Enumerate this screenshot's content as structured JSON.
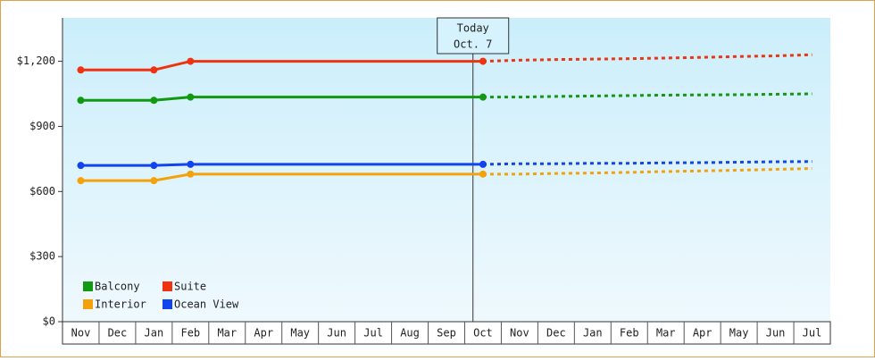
{
  "chart_data": {
    "type": "line",
    "categories": [
      "Nov",
      "Dec",
      "Jan",
      "Feb",
      "Mar",
      "Apr",
      "May",
      "Jun",
      "Jul",
      "Aug",
      "Sep",
      "Oct",
      "Nov",
      "Dec",
      "Jan",
      "Feb",
      "Mar",
      "Apr",
      "May",
      "Jun",
      "Jul"
    ],
    "series": [
      {
        "name": "Balcony",
        "color": "#119911",
        "values": [
          1020,
          1020,
          1020,
          1035,
          1035,
          1035,
          1035,
          1035,
          1035,
          1035,
          1035,
          1035,
          1035,
          1038,
          1040,
          1042,
          1044,
          1045,
          1046,
          1048,
          1050
        ]
      },
      {
        "name": "Suite",
        "color": "#ee3311",
        "values": [
          1160,
          1160,
          1160,
          1200,
          1200,
          1200,
          1200,
          1200,
          1200,
          1200,
          1200,
          1200,
          1205,
          1208,
          1210,
          1212,
          1215,
          1218,
          1222,
          1225,
          1230
        ]
      },
      {
        "name": "Interior",
        "color": "#f5a20a",
        "values": [
          650,
          650,
          650,
          680,
          680,
          680,
          680,
          680,
          680,
          680,
          680,
          680,
          680,
          683,
          685,
          688,
          692,
          695,
          698,
          702,
          706
        ]
      },
      {
        "name": "Ocean View",
        "color": "#1144ee",
        "values": [
          720,
          720,
          720,
          725,
          725,
          725,
          725,
          725,
          725,
          725,
          725,
          725,
          728,
          728,
          730,
          730,
          732,
          733,
          735,
          737,
          738
        ]
      }
    ],
    "annotation": {
      "text": "Today",
      "date": "Oct. 7"
    },
    "ylim": [
      0,
      1400
    ],
    "yticks": [
      {
        "value": 0,
        "label": "$0"
      },
      {
        "value": 300,
        "label": "$300"
      },
      {
        "value": 600,
        "label": "$600"
      },
      {
        "value": 900,
        "label": "$900"
      },
      {
        "value": 1200,
        "label": "$1,200"
      }
    ]
  }
}
